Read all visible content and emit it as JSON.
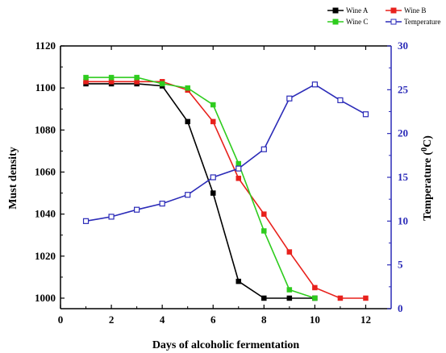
{
  "chart_data": {
    "type": "line",
    "xlabel": "Days of alcoholic fermentation",
    "ylabel": "Must density",
    "y2label_main": "Temperature (",
    "y2label_sup": "0",
    "y2label_end": "C)",
    "xlim": [
      0,
      13
    ],
    "ylim": [
      995,
      1120
    ],
    "y2lim": [
      0,
      30
    ],
    "xticks": [
      0,
      2,
      4,
      6,
      8,
      10,
      12
    ],
    "yticks": [
      1000,
      1020,
      1040,
      1060,
      1080,
      1100,
      1120
    ],
    "y2ticks": [
      0,
      5,
      10,
      15,
      20,
      25,
      30
    ],
    "legend_position": "top-right",
    "series": [
      {
        "name": "Wine A",
        "axis": "left",
        "color": "#000000",
        "marker": "square-filled",
        "x": [
          1,
          2,
          3,
          4,
          5,
          6,
          7,
          8,
          9,
          10
        ],
        "values": [
          1102,
          1102,
          1102,
          1101,
          1084,
          1050,
          1008,
          1000,
          1000,
          1000
        ]
      },
      {
        "name": "Wine B",
        "axis": "left",
        "color": "#e8211c",
        "marker": "square-filled",
        "x": [
          1,
          2,
          3,
          4,
          5,
          6,
          7,
          8,
          9,
          10,
          11,
          12
        ],
        "values": [
          1103,
          1103,
          1103,
          1103,
          1099,
          1084,
          1057,
          1040,
          1022,
          1005,
          1000,
          1000
        ]
      },
      {
        "name": "Wine C",
        "axis": "left",
        "color": "#2ecc1e",
        "marker": "square-filled",
        "x": [
          1,
          2,
          3,
          4,
          5,
          6,
          7,
          8,
          9,
          10
        ],
        "values": [
          1105,
          1105,
          1105,
          1102,
          1100,
          1092,
          1064,
          1032,
          1004,
          1000
        ]
      },
      {
        "name": "Temperature",
        "axis": "right",
        "color": "#2b2bb8",
        "marker": "square-open",
        "x": [
          1,
          2,
          3,
          4,
          5,
          6,
          7,
          8,
          9,
          10,
          11,
          12
        ],
        "values": [
          10,
          10.5,
          11.3,
          12,
          13,
          15,
          16,
          18.2,
          24,
          25.6,
          23.8,
          22.2
        ]
      }
    ]
  }
}
